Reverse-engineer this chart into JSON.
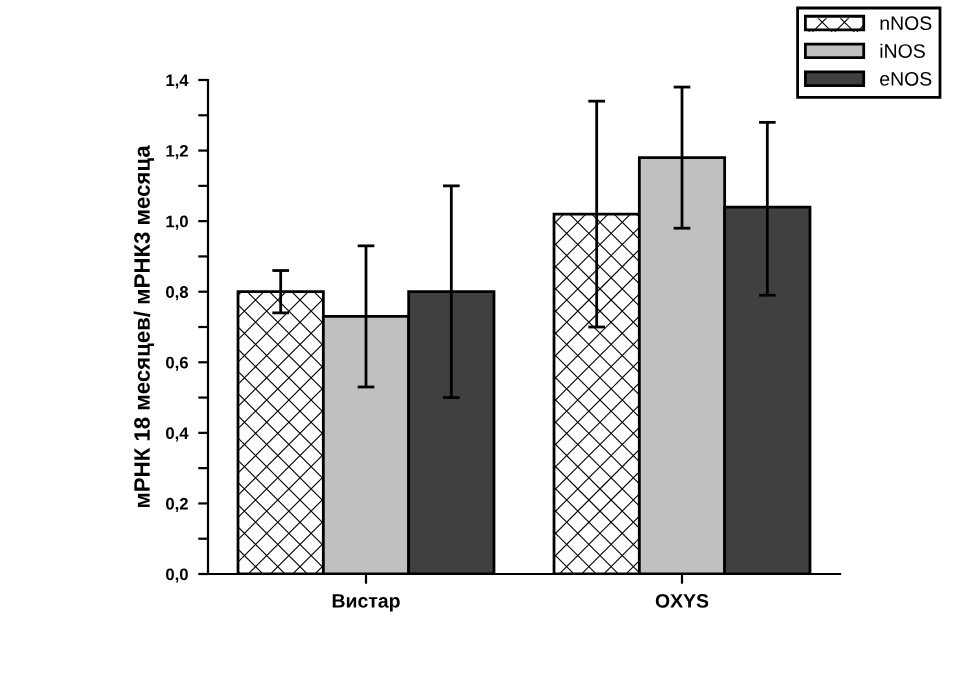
{
  "chart_data": {
    "type": "bar",
    "ylabel": "мРНК 18 месяцев/ мРНК3 месяца",
    "categories": [
      "Вистар",
      "OXYS"
    ],
    "series": [
      {
        "name": "nNOS",
        "color": "#ffffff",
        "values": [
          0.8,
          1.02
        ],
        "errors": [
          [
            0.74,
            0.86
          ],
          [
            0.7,
            1.34
          ]
        ]
      },
      {
        "name": "iNOS",
        "color": "#c0c0c0",
        "values": [
          0.73,
          1.18
        ],
        "errors": [
          [
            0.53,
            0.93
          ],
          [
            0.98,
            1.38
          ]
        ]
      },
      {
        "name": "eNOS",
        "color": "#404040",
        "values": [
          0.8,
          1.04
        ],
        "errors": [
          [
            0.5,
            1.1
          ],
          [
            0.79,
            1.28
          ]
        ]
      }
    ],
    "ylim": [
      0,
      1.4
    ],
    "yticks": [
      {
        "value": 0,
        "label": "0,0"
      },
      {
        "value": 0.1,
        "label": null
      },
      {
        "value": 0.2,
        "label": "0,2"
      },
      {
        "value": 0.3,
        "label": null
      },
      {
        "value": 0.4,
        "label": "0,4"
      },
      {
        "value": 0.5,
        "label": null
      },
      {
        "value": 0.6,
        "label": "0,6"
      },
      {
        "value": 0.7,
        "label": null
      },
      {
        "value": 0.8,
        "label": "0,8"
      },
      {
        "value": 0.9,
        "label": null
      },
      {
        "value": 1.0,
        "label": "1,0"
      },
      {
        "value": 1.1,
        "label": null
      },
      {
        "value": 1.2,
        "label": "1,2"
      },
      {
        "value": 1.3,
        "label": null
      },
      {
        "value": 1.4,
        "label": "1,4"
      }
    ],
    "grid": false,
    "legend": "top right"
  }
}
